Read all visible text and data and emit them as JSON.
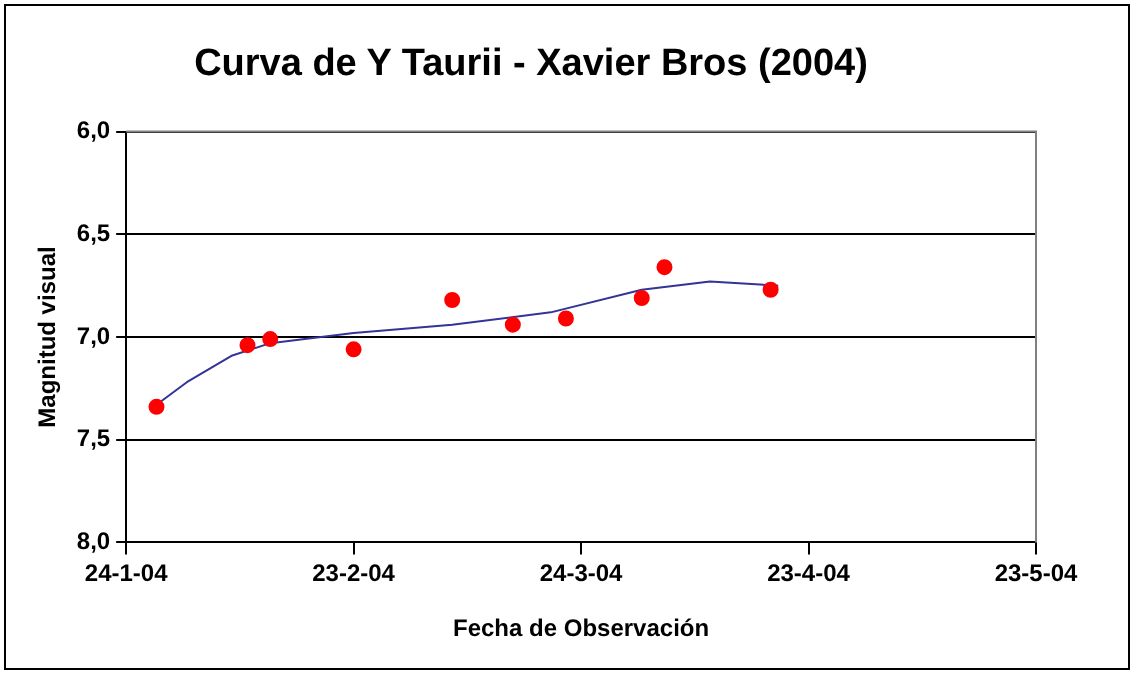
{
  "chart_data": {
    "type": "scatter",
    "title": "Curva de Y Taurii - Xavier Bros (2004)",
    "xlabel": "Fecha de Observación",
    "ylabel": "Magnitud visual",
    "x": [
      "2004-01-28",
      "2004-02-09",
      "2004-02-12",
      "2004-02-23",
      "2004-03-07",
      "2004-03-15",
      "2004-03-22",
      "2004-04-01",
      "2004-04-04",
      "2004-04-18"
    ],
    "series": [
      {
        "color": "#ff0000",
        "marker": "circle",
        "values": [
          7.34,
          7.04,
          7.01,
          7.06,
          6.82,
          6.94,
          6.91,
          6.81,
          6.66,
          6.77
        ]
      },
      {
        "type": "line",
        "color": "#333399",
        "marker": "none",
        "x": [
          "2004-01-28",
          "2004-02-01",
          "2004-02-07",
          "2004-02-12",
          "2004-02-23",
          "2004-03-07",
          "2004-03-20",
          "2004-04-01",
          "2004-04-10",
          "2004-04-19"
        ],
        "values": [
          7.33,
          7.22,
          7.09,
          7.03,
          6.98,
          6.94,
          6.88,
          6.77,
          6.73,
          6.75
        ]
      }
    ],
    "xlim": [
      "2004-01-24",
      "2004-05-23"
    ],
    "xticks": [
      {
        "value": "2004-01-24",
        "label": "24-1-04"
      },
      {
        "value": "2004-02-23",
        "label": "23-2-04"
      },
      {
        "value": "2004-03-24",
        "label": "24-3-04"
      },
      {
        "value": "2004-04-23",
        "label": "23-4-04"
      },
      {
        "value": "2004-05-23",
        "label": "23-5-04"
      }
    ],
    "ylim": [
      8,
      6
    ],
    "yticks": [
      {
        "value": 6,
        "label": "6,0"
      },
      {
        "value": 6.5,
        "label": "6,5"
      },
      {
        "value": 7,
        "label": "7,0"
      },
      {
        "value": 7.5,
        "label": "7,5"
      },
      {
        "value": 8,
        "label": "8,0"
      }
    ],
    "grid": "y",
    "legend": false
  }
}
